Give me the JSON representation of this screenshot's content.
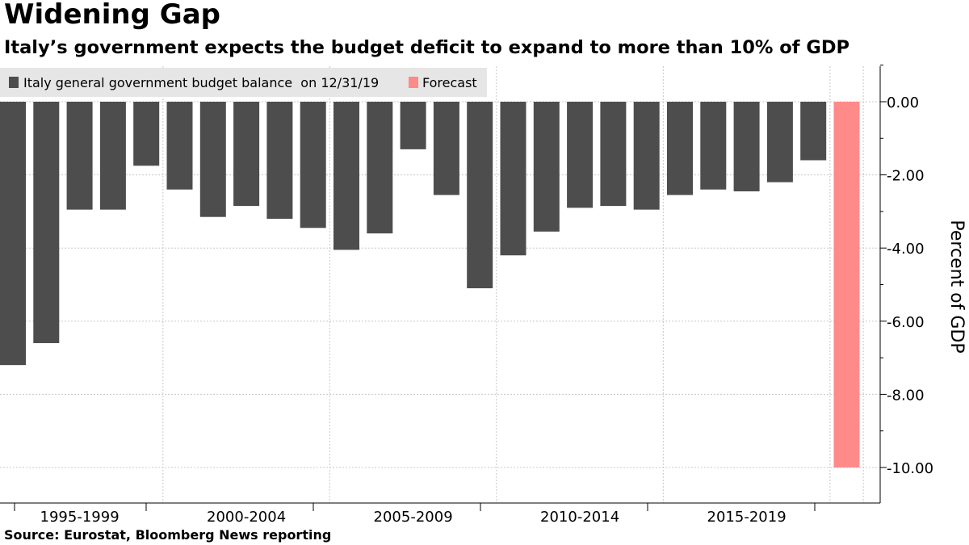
{
  "chart_data": {
    "type": "bar",
    "title": "Widening Gap",
    "subtitle": "Italy’s government expects the budget deficit to expand to more than 10% of GDP",
    "source": "Source: Eurostat, Bloomberg News reporting",
    "ylabel": "Percent of GDP",
    "ylim": [
      -11,
      1
    ],
    "y_ticks": [
      0,
      -2,
      -4,
      -6,
      -8,
      -10
    ],
    "y_tick_labels": [
      "0.00",
      "-2.00",
      "-4.00",
      "-6.00",
      "-8.00",
      "-10.00"
    ],
    "x": [
      1995,
      1996,
      1997,
      1998,
      1999,
      2000,
      2001,
      2002,
      2003,
      2004,
      2005,
      2006,
      2007,
      2008,
      2009,
      2010,
      2011,
      2012,
      2013,
      2014,
      2015,
      2016,
      2017,
      2018,
      2019,
      2020
    ],
    "x_groups": [
      "1995-1999",
      "2000-2004",
      "2005-2009",
      "2010-2014",
      "2015-2019"
    ],
    "grid": true,
    "legend_position": "top-left",
    "series": [
      {
        "name": "Italy general government budget balance  on 12/31/19",
        "color": "#4d4d4d",
        "values": [
          -7.2,
          -6.6,
          -2.95,
          -2.95,
          -1.75,
          -2.4,
          -3.15,
          -2.85,
          -3.2,
          -3.45,
          -4.05,
          -3.6,
          -1.3,
          -2.55,
          -5.1,
          -4.2,
          -3.55,
          -2.9,
          -2.85,
          -2.95,
          -2.55,
          -2.4,
          -2.45,
          -2.2,
          -1.6,
          null
        ]
      },
      {
        "name": "Forecast",
        "color": "#ff8a8a",
        "values": [
          null,
          null,
          null,
          null,
          null,
          null,
          null,
          null,
          null,
          null,
          null,
          null,
          null,
          null,
          null,
          null,
          null,
          null,
          null,
          null,
          null,
          null,
          null,
          null,
          null,
          -10.0
        ]
      }
    ]
  }
}
